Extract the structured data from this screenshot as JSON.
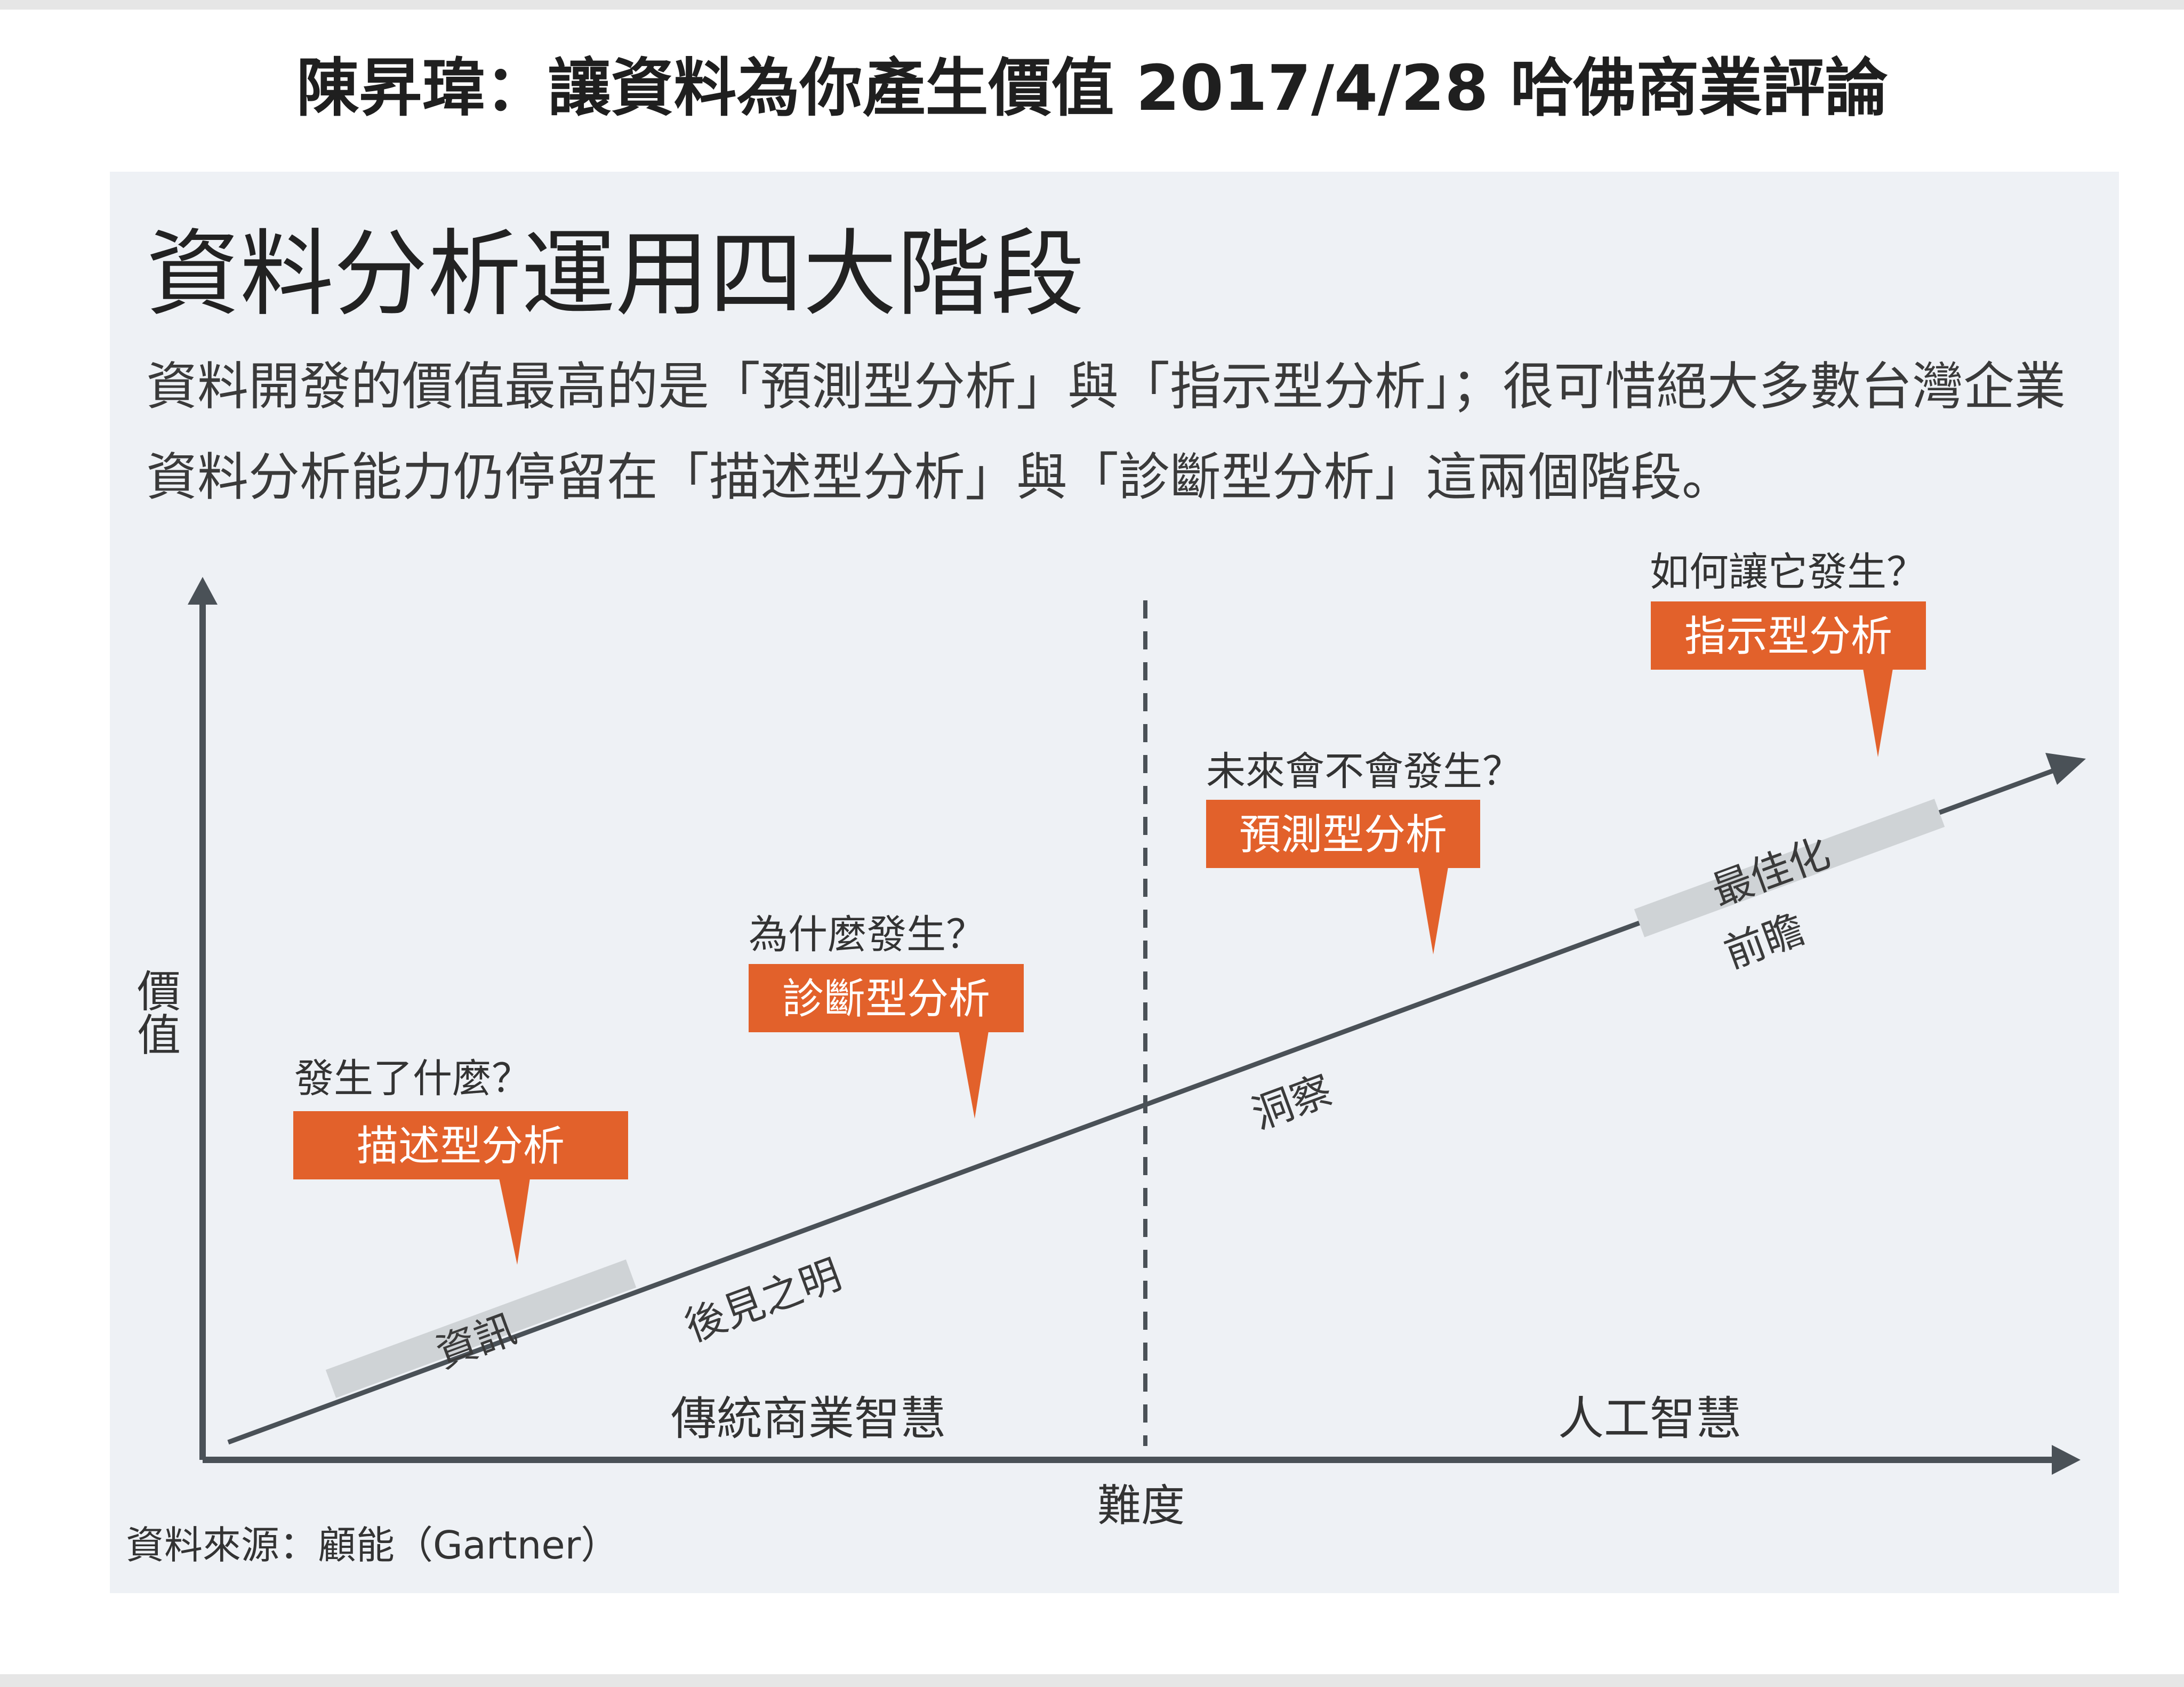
{
  "header": {
    "title": "陳昇瑋：讓資料為你產生價值 2017/4/28 哈佛商業評論"
  },
  "panel": {
    "title": "資料分析運用四大階段",
    "description": "資料開發的價值最高的是「預測型分析」與「指示型分析」；很可惜絕大多數台灣企業資料分析能力仍停留在「描述型分析」與「診斷型分析」這兩個階段。"
  },
  "axes": {
    "y_label": "價值",
    "x_label": "難度"
  },
  "regions": {
    "left": "傳統商業智慧",
    "right": "人工智慧"
  },
  "stages": [
    {
      "question": "發生了什麼？",
      "label": "描述型分析"
    },
    {
      "question": "為什麼發生？",
      "label": "診斷型分析"
    },
    {
      "question": "未來會不會發生？",
      "label": "預測型分析"
    },
    {
      "question": "如何讓它發生？",
      "label": "指示型分析"
    }
  ],
  "trend": {
    "segments": [
      "資訊",
      "最佳化"
    ],
    "labels": [
      "後見之明",
      "洞察",
      "前瞻"
    ]
  },
  "source": "資料來源：顧能（Gartner）",
  "colors": {
    "accent": "#e2612b",
    "axis": "#4a5157",
    "panel": "#eef1f5",
    "band": "#cfd3d6"
  }
}
